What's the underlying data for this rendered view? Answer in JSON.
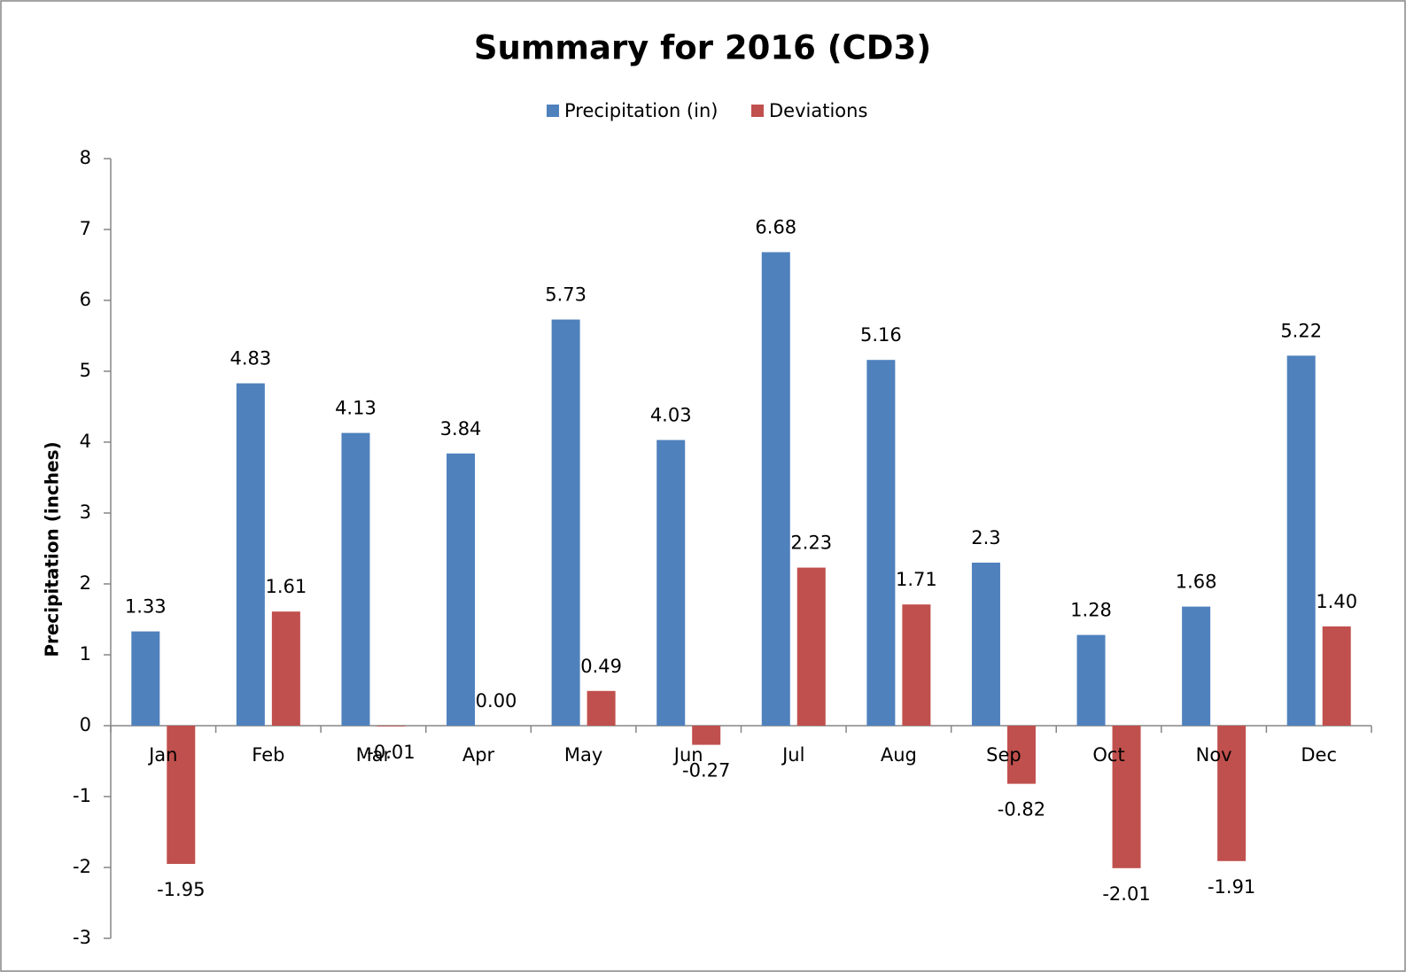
{
  "chart_data": {
    "type": "bar",
    "title": "Summary for 2016 (CD3)",
    "y_label": "Precipitation (inches)",
    "categories": [
      "Jan",
      "Feb",
      "Mar",
      "Apr",
      "May",
      "Jun",
      "Jul",
      "Aug",
      "Sep",
      "Oct",
      "Nov",
      "Dec"
    ],
    "series": [
      {
        "name": "Precipitation (in)",
        "color": "#4f81bd",
        "values": [
          1.33,
          4.83,
          4.13,
          3.84,
          5.73,
          4.03,
          6.68,
          5.16,
          2.3,
          1.28,
          1.68,
          5.22
        ]
      },
      {
        "name": "Deviations",
        "color": "#c0504d",
        "values": [
          -1.95,
          1.61,
          -0.01,
          0.0,
          0.49,
          -0.27,
          2.23,
          1.71,
          -0.82,
          -2.01,
          -1.91,
          1.4
        ],
        "value_labels": [
          "-1.95",
          "1.61",
          "-0.01",
          "0.00",
          "0.49",
          "-0.27",
          "2.23",
          "1.71",
          "-0.82",
          "-2.01",
          "-1.91",
          "1.40"
        ]
      }
    ],
    "ylim": [
      -3,
      8
    ],
    "yticks": [
      -3,
      -2,
      -1,
      0,
      1,
      2,
      3,
      4,
      5,
      6,
      7,
      8
    ],
    "grid": false,
    "legend": "top"
  }
}
